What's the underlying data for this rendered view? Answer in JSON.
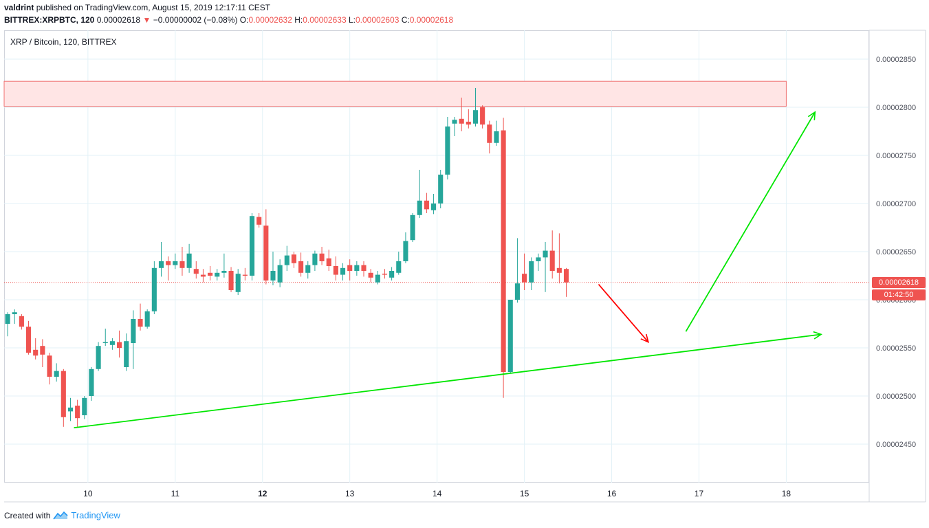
{
  "header": {
    "author": "valdrint",
    "published_text": "published on TradingView.com, August 15, 2019 12:17:11 CEST",
    "symbol": "BITTREX:XRPBTC, 120",
    "last_price": "0.00002618",
    "change_arrow": "▼",
    "change_text": "−0.00000002 (−0.08%)",
    "o_label": "O:",
    "o_value": "0.00002632",
    "h_label": "H:",
    "h_value": "0.00002633",
    "l_label": "L:",
    "l_value": "0.00002603",
    "c_label": "C:",
    "c_value": "0.00002618"
  },
  "legend": "XRP / Bitcoin, 120, BITTREX",
  "price_label": "0.00002618",
  "countdown_label": "01:42:50",
  "footer": {
    "created_with": "Created with",
    "brand": "TradingView"
  },
  "colors": {
    "up": "#26a69a",
    "down": "#ef5350",
    "trendline": "#00e600",
    "arrow_down": "#ff0000",
    "resistance_fill": "#ffe5e5",
    "resistance_border": "#f07070",
    "grid": "#e3f2f7"
  },
  "chart_data": {
    "type": "candlestick",
    "title": "XRP / Bitcoin, 120, BITTREX",
    "x_ticks": [
      "10",
      "11",
      "12",
      "13",
      "14",
      "15",
      "16",
      "17",
      "18"
    ],
    "x_tick_values": [
      10,
      11,
      12,
      13,
      14,
      15,
      16,
      17,
      18
    ],
    "x_range": [
      9.04,
      18.95
    ],
    "y_ticks": [
      "0.00002450",
      "0.00002500",
      "0.00002550",
      "0.00002600",
      "0.00002650",
      "0.00002700",
      "0.00002750",
      "0.00002800",
      "0.00002850"
    ],
    "y_tick_values": [
      2450,
      2500,
      2550,
      2600,
      2650,
      2700,
      2750,
      2800,
      2850
    ],
    "y_range": [
      2410,
      2880
    ],
    "y_unit_multiplier": 1e-08,
    "grid": true,
    "current_price": 2618,
    "candles": [
      {
        "t": 9.08,
        "o": 2575,
        "h": 2587,
        "l": 2562,
        "c": 2585
      },
      {
        "t": 9.16,
        "o": 2585,
        "h": 2590,
        "l": 2575,
        "c": 2587
      },
      {
        "t": 9.24,
        "o": 2583,
        "h": 2585,
        "l": 2569,
        "c": 2572
      },
      {
        "t": 9.32,
        "o": 2572,
        "h": 2578,
        "l": 2543,
        "c": 2545
      },
      {
        "t": 9.4,
        "o": 2548,
        "h": 2560,
        "l": 2538,
        "c": 2542
      },
      {
        "t": 9.48,
        "o": 2552,
        "h": 2559,
        "l": 2530,
        "c": 2543
      },
      {
        "t": 9.56,
        "o": 2542,
        "h": 2545,
        "l": 2512,
        "c": 2520
      },
      {
        "t": 9.64,
        "o": 2520,
        "h": 2534,
        "l": 2515,
        "c": 2526
      },
      {
        "t": 9.72,
        "o": 2526,
        "h": 2528,
        "l": 2468,
        "c": 2478
      },
      {
        "t": 9.8,
        "o": 2484,
        "h": 2498,
        "l": 2474,
        "c": 2488
      },
      {
        "t": 9.88,
        "o": 2490,
        "h": 2496,
        "l": 2468,
        "c": 2477
      },
      {
        "t": 9.96,
        "o": 2480,
        "h": 2500,
        "l": 2476,
        "c": 2498
      },
      {
        "t": 10.04,
        "o": 2500,
        "h": 2530,
        "l": 2495,
        "c": 2528
      },
      {
        "t": 10.12,
        "o": 2528,
        "h": 2556,
        "l": 2526,
        "c": 2552
      },
      {
        "t": 10.2,
        "o": 2555,
        "h": 2570,
        "l": 2552,
        "c": 2556
      },
      {
        "t": 10.28,
        "o": 2553,
        "h": 2560,
        "l": 2548,
        "c": 2557
      },
      {
        "t": 10.36,
        "o": 2556,
        "h": 2568,
        "l": 2540,
        "c": 2550
      },
      {
        "t": 10.44,
        "o": 2530,
        "h": 2565,
        "l": 2526,
        "c": 2557
      },
      {
        "t": 10.52,
        "o": 2555,
        "h": 2589,
        "l": 2528,
        "c": 2580
      },
      {
        "t": 10.6,
        "o": 2580,
        "h": 2596,
        "l": 2568,
        "c": 2572
      },
      {
        "t": 10.68,
        "o": 2572,
        "h": 2590,
        "l": 2570,
        "c": 2588
      },
      {
        "t": 10.76,
        "o": 2588,
        "h": 2640,
        "l": 2585,
        "c": 2633
      },
      {
        "t": 10.84,
        "o": 2633,
        "h": 2660,
        "l": 2624,
        "c": 2640
      },
      {
        "t": 10.92,
        "o": 2640,
        "h": 2645,
        "l": 2620,
        "c": 2636
      },
      {
        "t": 11.0,
        "o": 2636,
        "h": 2648,
        "l": 2632,
        "c": 2640
      },
      {
        "t": 11.08,
        "o": 2640,
        "h": 2655,
        "l": 2625,
        "c": 2633
      },
      {
        "t": 11.16,
        "o": 2633,
        "h": 2658,
        "l": 2628,
        "c": 2648
      },
      {
        "t": 11.24,
        "o": 2632,
        "h": 2640,
        "l": 2622,
        "c": 2627
      },
      {
        "t": 11.32,
        "o": 2626,
        "h": 2632,
        "l": 2618,
        "c": 2624
      },
      {
        "t": 11.4,
        "o": 2628,
        "h": 2635,
        "l": 2620,
        "c": 2625
      },
      {
        "t": 11.48,
        "o": 2624,
        "h": 2632,
        "l": 2620,
        "c": 2628
      },
      {
        "t": 11.56,
        "o": 2628,
        "h": 2648,
        "l": 2623,
        "c": 2630
      },
      {
        "t": 11.64,
        "o": 2630,
        "h": 2634,
        "l": 2608,
        "c": 2610
      },
      {
        "t": 11.72,
        "o": 2608,
        "h": 2632,
        "l": 2605,
        "c": 2627
      },
      {
        "t": 11.8,
        "o": 2626,
        "h": 2633,
        "l": 2620,
        "c": 2625
      },
      {
        "t": 11.88,
        "o": 2625,
        "h": 2690,
        "l": 2620,
        "c": 2687
      },
      {
        "t": 11.96,
        "o": 2686,
        "h": 2690,
        "l": 2675,
        "c": 2678
      },
      {
        "t": 12.04,
        "o": 2677,
        "h": 2694,
        "l": 2616,
        "c": 2620
      },
      {
        "t": 12.12,
        "o": 2620,
        "h": 2650,
        "l": 2615,
        "c": 2630
      },
      {
        "t": 12.2,
        "o": 2618,
        "h": 2642,
        "l": 2613,
        "c": 2636
      },
      {
        "t": 12.28,
        "o": 2636,
        "h": 2656,
        "l": 2630,
        "c": 2646
      },
      {
        "t": 12.36,
        "o": 2647,
        "h": 2650,
        "l": 2633,
        "c": 2638
      },
      {
        "t": 12.44,
        "o": 2640,
        "h": 2649,
        "l": 2624,
        "c": 2628
      },
      {
        "t": 12.52,
        "o": 2628,
        "h": 2640,
        "l": 2622,
        "c": 2636
      },
      {
        "t": 12.6,
        "o": 2636,
        "h": 2651,
        "l": 2630,
        "c": 2648
      },
      {
        "t": 12.68,
        "o": 2648,
        "h": 2655,
        "l": 2636,
        "c": 2640
      },
      {
        "t": 12.76,
        "o": 2643,
        "h": 2652,
        "l": 2630,
        "c": 2635
      },
      {
        "t": 12.84,
        "o": 2635,
        "h": 2645,
        "l": 2620,
        "c": 2626
      },
      {
        "t": 12.92,
        "o": 2626,
        "h": 2638,
        "l": 2620,
        "c": 2633
      },
      {
        "t": 13.0,
        "o": 2636,
        "h": 2642,
        "l": 2620,
        "c": 2630
      },
      {
        "t": 13.08,
        "o": 2630,
        "h": 2640,
        "l": 2625,
        "c": 2636
      },
      {
        "t": 13.16,
        "o": 2636,
        "h": 2640,
        "l": 2624,
        "c": 2630
      },
      {
        "t": 13.24,
        "o": 2628,
        "h": 2632,
        "l": 2618,
        "c": 2623
      },
      {
        "t": 13.32,
        "o": 2618,
        "h": 2630,
        "l": 2616,
        "c": 2626
      },
      {
        "t": 13.4,
        "o": 2627,
        "h": 2632,
        "l": 2622,
        "c": 2626
      },
      {
        "t": 13.48,
        "o": 2623,
        "h": 2634,
        "l": 2620,
        "c": 2630
      },
      {
        "t": 13.56,
        "o": 2628,
        "h": 2650,
        "l": 2626,
        "c": 2640
      },
      {
        "t": 13.64,
        "o": 2640,
        "h": 2670,
        "l": 2638,
        "c": 2661
      },
      {
        "t": 13.72,
        "o": 2662,
        "h": 2690,
        "l": 2660,
        "c": 2688
      },
      {
        "t": 13.8,
        "o": 2688,
        "h": 2735,
        "l": 2685,
        "c": 2703
      },
      {
        "t": 13.88,
        "o": 2703,
        "h": 2711,
        "l": 2690,
        "c": 2694
      },
      {
        "t": 13.96,
        "o": 2693,
        "h": 2710,
        "l": 2689,
        "c": 2700
      },
      {
        "t": 14.04,
        "o": 2700,
        "h": 2735,
        "l": 2695,
        "c": 2730
      },
      {
        "t": 14.12,
        "o": 2730,
        "h": 2790,
        "l": 2725,
        "c": 2780
      },
      {
        "t": 14.2,
        "o": 2783,
        "h": 2790,
        "l": 2770,
        "c": 2787
      },
      {
        "t": 14.28,
        "o": 2788,
        "h": 2810,
        "l": 2775,
        "c": 2783
      },
      {
        "t": 14.36,
        "o": 2785,
        "h": 2798,
        "l": 2778,
        "c": 2782
      },
      {
        "t": 14.44,
        "o": 2783,
        "h": 2820,
        "l": 2780,
        "c": 2797
      },
      {
        "t": 14.52,
        "o": 2800,
        "h": 2802,
        "l": 2778,
        "c": 2782
      },
      {
        "t": 14.6,
        "o": 2782,
        "h": 2786,
        "l": 2752,
        "c": 2763
      },
      {
        "t": 14.68,
        "o": 2763,
        "h": 2786,
        "l": 2760,
        "c": 2775
      },
      {
        "t": 14.76,
        "o": 2776,
        "h": 2789,
        "l": 2498,
        "c": 2525
      },
      {
        "t": 14.84,
        "o": 2525,
        "h": 2600,
        "l": 2524,
        "c": 2600
      },
      {
        "t": 14.92,
        "o": 2600,
        "h": 2664,
        "l": 2597,
        "c": 2617
      },
      {
        "t": 15.0,
        "o": 2627,
        "h": 2648,
        "l": 2610,
        "c": 2618
      },
      {
        "t": 15.08,
        "o": 2618,
        "h": 2644,
        "l": 2610,
        "c": 2640
      },
      {
        "t": 15.16,
        "o": 2640,
        "h": 2648,
        "l": 2630,
        "c": 2644
      },
      {
        "t": 15.24,
        "o": 2644,
        "h": 2660,
        "l": 2608,
        "c": 2651
      },
      {
        "t": 15.32,
        "o": 2651,
        "h": 2672,
        "l": 2622,
        "c": 2630
      },
      {
        "t": 15.4,
        "o": 2633,
        "h": 2669,
        "l": 2617,
        "c": 2628
      },
      {
        "t": 15.48,
        "o": 2632,
        "h": 2633,
        "l": 2603,
        "c": 2618
      }
    ],
    "annotations": [
      {
        "type": "rect",
        "name": "resistance-zone",
        "x_start": 9.04,
        "x_end": 18.0,
        "y_low": 2801,
        "y_high": 2827
      },
      {
        "type": "trendline",
        "name": "ascending-support-line",
        "x1": 9.84,
        "y1": 2467,
        "x2": 18.4,
        "y2": 2564,
        "arrow": true
      },
      {
        "type": "arrow",
        "name": "short-term-down-arrow",
        "x1": 15.85,
        "y1": 2616,
        "x2": 16.42,
        "y2": 2556,
        "color": "red"
      },
      {
        "type": "arrow",
        "name": "projection-up-arrow",
        "x1": 16.85,
        "y1": 2567,
        "x2": 18.33,
        "y2": 2795,
        "color": "green"
      }
    ]
  }
}
